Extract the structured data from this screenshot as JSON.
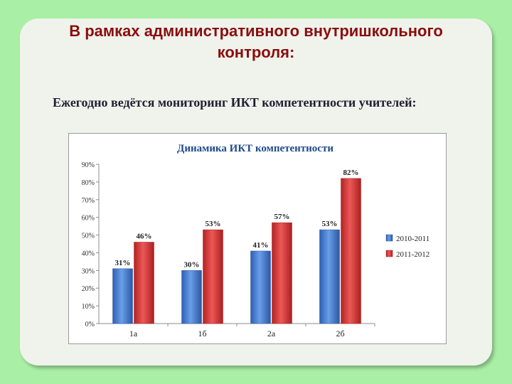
{
  "slide": {
    "title": "В рамках административного внутришкольного\nконтроля:",
    "subtitle": "Ежегодно ведётся мониторинг ИКТ компетентности учителей:"
  },
  "colors": {
    "background": "#a9efa5",
    "title": "#8b0d0d",
    "series_blue": "#4a7fd0",
    "series_red": "#d83a3a",
    "chart_title": "#1f4a8a"
  },
  "chart_data": {
    "type": "bar",
    "title": "Динамика ИКТ компетентности",
    "categories": [
      "1а",
      "1б",
      "2а",
      "2б"
    ],
    "series": [
      {
        "name": "2010-2011",
        "values": [
          31,
          30,
          41,
          53
        ],
        "labels": [
          "31%",
          "30%",
          "41%",
          "53%"
        ]
      },
      {
        "name": "2011-2012",
        "values": [
          46,
          53,
          57,
          82
        ],
        "labels": [
          "46%",
          "53%",
          "57%",
          "82%"
        ]
      }
    ],
    "ylim": [
      0,
      90
    ],
    "yticks": [
      "0%",
      "10%",
      "20%",
      "30%",
      "40%",
      "50%",
      "60%",
      "70%",
      "80%",
      "90%"
    ],
    "xlabel": "",
    "ylabel": "",
    "grid": false,
    "legend": "right"
  }
}
